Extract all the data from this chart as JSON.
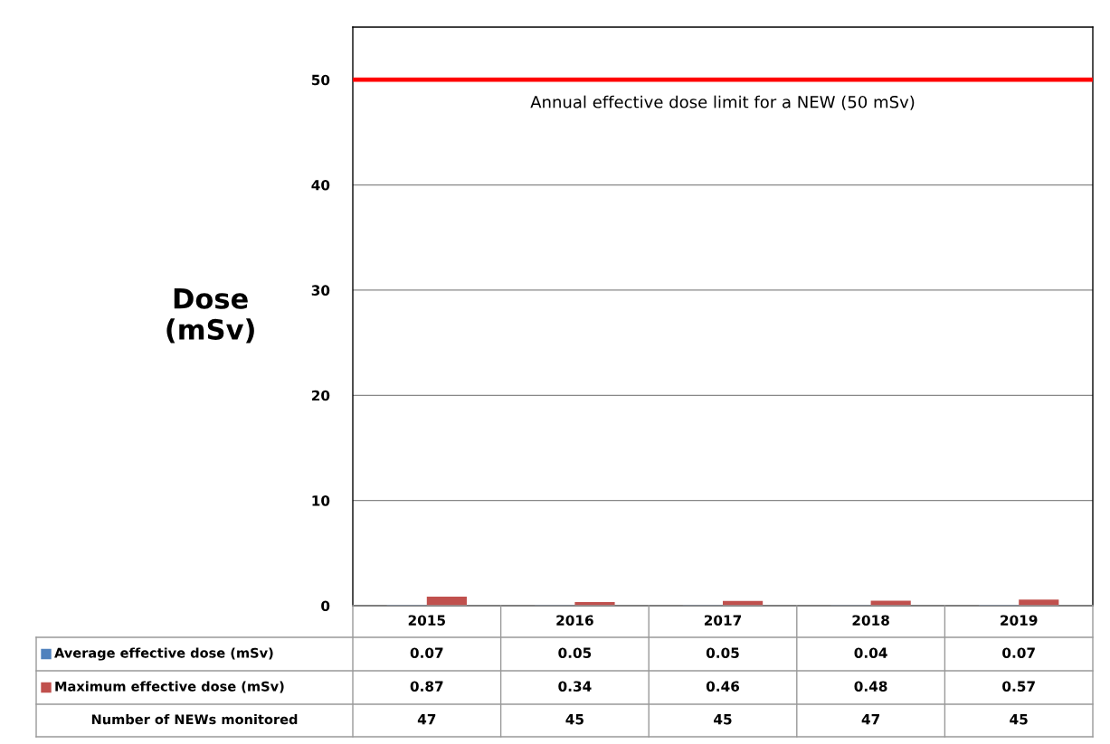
{
  "chart_data": {
    "type": "bar",
    "ylabel": "Dose\n(mSv)",
    "categories": [
      "2015",
      "2016",
      "2017",
      "2018",
      "2019"
    ],
    "series": [
      {
        "name": "Average effective dose (mSv)",
        "color": "#4f81bd",
        "values": [
          0.07,
          0.05,
          0.05,
          0.04,
          0.07
        ]
      },
      {
        "name": "Maximum effective dose (mSv)",
        "color": "#c0504d",
        "values": [
          0.87,
          0.34,
          0.46,
          0.48,
          0.57
        ]
      }
    ],
    "legend": "bottom left",
    "ylim": [
      0,
      55
    ],
    "yticks": [
      0,
      10,
      20,
      30,
      40,
      50
    ],
    "grid": "y",
    "data_labels": true,
    "ref_lines": [
      {
        "axis": "y",
        "value": 50,
        "label": "Annual effective dose limit for a NEW (50 mSv)",
        "color": "#ff0000"
      }
    ],
    "annotations": [
      "Number of NEWs monitored",
      "47",
      "45",
      "45",
      "47",
      "45"
    ]
  }
}
